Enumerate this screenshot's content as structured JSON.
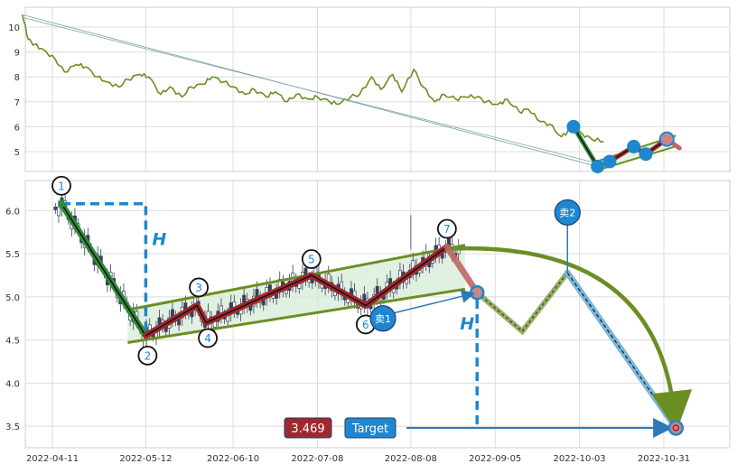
{
  "chart_data": [
    {
      "type": "line",
      "panel": "overview",
      "ylim": [
        4.2,
        10.8
      ],
      "y_ticks": [
        5,
        6,
        7,
        8,
        9,
        10
      ],
      "x_range": [
        "2022-03-29",
        "2022-11-12"
      ],
      "grid": true,
      "series": [
        {
          "color": "#6b8e23",
          "x": [
            "2022-04-01",
            "2022-04-03",
            "2022-04-05",
            "2022-04-08",
            "2022-04-12",
            "2022-04-15",
            "2022-04-19",
            "2022-04-22",
            "2022-04-26",
            "2022-04-29",
            "2022-05-03",
            "2022-05-06",
            "2022-05-10",
            "2022-05-13",
            "2022-05-17",
            "2022-05-20",
            "2022-05-24",
            "2022-05-27",
            "2022-05-31",
            "2022-06-03",
            "2022-06-07",
            "2022-06-10",
            "2022-06-14",
            "2022-06-17",
            "2022-06-21",
            "2022-06-24",
            "2022-06-28",
            "2022-07-01",
            "2022-07-05",
            "2022-07-08",
            "2022-07-12",
            "2022-07-15",
            "2022-07-19",
            "2022-07-22",
            "2022-07-26",
            "2022-07-29",
            "2022-08-02",
            "2022-08-05",
            "2022-08-09",
            "2022-08-12",
            "2022-08-16",
            "2022-08-19",
            "2022-08-23",
            "2022-08-26",
            "2022-08-30",
            "2022-09-02",
            "2022-09-06",
            "2022-09-09",
            "2022-09-13",
            "2022-09-16",
            "2022-09-20",
            "2022-09-23",
            "2022-09-27",
            "2022-09-30",
            "2022-10-04",
            "2022-10-07",
            "2022-10-11"
          ],
          "y": [
            10.5,
            9.5,
            9.3,
            9.1,
            8.7,
            8.2,
            8.5,
            8.4,
            8.0,
            7.8,
            7.6,
            7.9,
            8.1,
            8.0,
            7.3,
            7.6,
            7.2,
            7.6,
            7.7,
            8.0,
            7.8,
            7.6,
            7.3,
            7.5,
            7.2,
            7.4,
            7.0,
            7.3,
            7.1,
            7.2,
            7.0,
            6.9,
            7.2,
            7.3,
            8.0,
            7.5,
            8.1,
            7.4,
            8.3,
            7.6,
            7.0,
            7.3,
            7.1,
            7.2,
            7.2,
            7.0,
            6.9,
            7.1,
            6.6,
            6.7,
            6.2,
            6.1,
            5.6,
            5.9,
            5.7,
            5.5,
            5.4
          ]
        }
      ],
      "markers": {
        "blue_points": [
          {
            "x": "2022-10-01",
            "y": 6.0
          },
          {
            "x": "2022-10-09",
            "y": 4.4
          },
          {
            "x": "2022-10-13",
            "y": 4.6
          },
          {
            "x": "2022-10-21",
            "y": 5.2
          },
          {
            "x": "2022-10-25",
            "y": 4.9
          },
          {
            "x": "2022-11-01",
            "y": 5.5
          }
        ]
      }
    },
    {
      "type": "candlestick",
      "panel": "pattern",
      "ylim": [
        3.25,
        6.35
      ],
      "y_ticks": [
        "3.5",
        "4.0",
        "4.5",
        "5.0",
        "5.5",
        "6.0"
      ],
      "x_ticks": [
        "2022-04-11",
        "2022-05-12",
        "2022-06-10",
        "2022-07-08",
        "2022-08-08",
        "2022-09-05",
        "2022-10-03",
        "2022-10-31"
      ],
      "grid": true,
      "pattern_points": [
        {
          "label": "1",
          "x": "2022-04-14",
          "y": 6.08
        },
        {
          "label": "2",
          "x": "2022-05-12",
          "y": 4.55
        },
        {
          "label": "3",
          "x": "2022-05-29",
          "y": 4.9
        },
        {
          "label": "4",
          "x": "2022-06-01",
          "y": 4.7
        },
        {
          "label": "5",
          "x": "2022-07-06",
          "y": 5.25
        },
        {
          "label": "6",
          "x": "2022-07-24",
          "y": 4.9
        },
        {
          "label": "7",
          "x": "2022-08-20",
          "y": 5.58
        }
      ],
      "channel": {
        "upper": [
          {
            "x": "2022-05-06",
            "y": 4.85
          },
          {
            "x": "2022-08-26",
            "y": 5.6
          }
        ],
        "lower": [
          {
            "x": "2022-05-06",
            "y": 4.47
          },
          {
            "x": "2022-08-26",
            "y": 5.09
          }
        ]
      },
      "projection": [
        {
          "x": "2022-08-30",
          "y": 5.05
        },
        {
          "x": "2022-09-14",
          "y": 4.6
        },
        {
          "x": "2022-09-29",
          "y": 5.28
        },
        {
          "x": "2022-11-04",
          "y": 3.48
        }
      ],
      "annotations": {
        "h_label": "H",
        "sell1": "卖1",
        "sell2": "卖2",
        "target_label": "Target",
        "target_value": "3.469"
      },
      "colors": {
        "down_leg": "#2e8b3a",
        "up_leg": "#a0282d",
        "channel": "#6b8e23",
        "accent": "#1f87cf",
        "target_box": "#a0282d"
      }
    }
  ]
}
